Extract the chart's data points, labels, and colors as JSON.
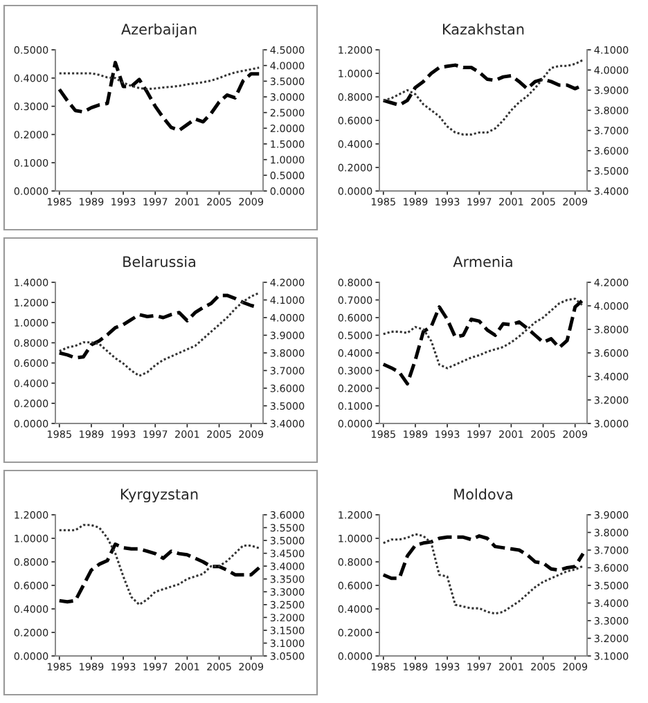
{
  "chart_data": [
    {
      "type": "line",
      "title": "Azerbaijan",
      "categories": [
        "1985",
        null,
        null,
        null,
        "1989",
        null,
        null,
        null,
        "1993",
        null,
        null,
        null,
        "1997",
        null,
        null,
        null,
        "2001",
        null,
        null,
        null,
        "2005",
        null,
        null,
        null,
        "2009",
        null
      ],
      "series": [
        {
          "color": "#000000",
          "line_style": "dashed",
          "values": [
            0.36,
            0.32,
            0.285,
            0.28,
            0.295,
            0.305,
            0.31,
            0.455,
            0.37,
            0.37,
            0.395,
            0.35,
            0.3,
            0.26,
            0.225,
            0.215,
            0.235,
            0.255,
            0.245,
            0.275,
            0.315,
            0.34,
            0.33,
            0.39,
            0.415,
            0.415
          ]
        },
        {
          "color": "#333333",
          "line_style": "dotted",
          "axis": "y2",
          "values": [
            3.75,
            3.75,
            3.75,
            3.75,
            3.75,
            3.7,
            3.62,
            3.6,
            3.45,
            3.35,
            3.28,
            3.25,
            3.27,
            3.3,
            3.32,
            3.35,
            3.4,
            3.43,
            3.47,
            3.52,
            3.6,
            3.7,
            3.78,
            3.83,
            3.88,
            3.93
          ]
        }
      ],
      "ylim": [
        0,
        0.5
      ],
      "yticks": [
        {
          "value": 0,
          "label": "0.0000"
        },
        {
          "value": 0.1,
          "label": "0.1000"
        },
        {
          "value": 0.2,
          "label": "0.2000"
        },
        {
          "value": 0.3,
          "label": "0.3000"
        },
        {
          "value": 0.4,
          "label": "0.4000"
        },
        {
          "value": 0.5,
          "label": "0.5000"
        }
      ],
      "y2lim": [
        0,
        4.5
      ],
      "y2ticks": [
        {
          "value": 0,
          "label": "0.0000"
        },
        {
          "value": 0.5,
          "label": "0.5000"
        },
        {
          "value": 1,
          "label": "1.0000"
        },
        {
          "value": 1.5,
          "label": "1.5000"
        },
        {
          "value": 2,
          "label": "2.0000"
        },
        {
          "value": 2.5,
          "label": "2.5000"
        },
        {
          "value": 3,
          "label": "3.0000"
        },
        {
          "value": 3.5,
          "label": "3.5000"
        },
        {
          "value": 4,
          "label": "4.0000"
        },
        {
          "value": 4.5,
          "label": "4.5000"
        }
      ],
      "grid": false,
      "legend": false
    },
    {
      "type": "line",
      "title": "Kazakhstan",
      "categories": [
        "1985",
        null,
        null,
        null,
        "1989",
        null,
        null,
        null,
        "1993",
        null,
        null,
        null,
        "1997",
        null,
        null,
        null,
        "2001",
        null,
        null,
        null,
        "2005",
        null,
        null,
        null,
        "2009",
        null
      ],
      "series": [
        {
          "color": "#000000",
          "line_style": "dashed",
          "values": [
            0.77,
            0.75,
            0.73,
            0.77,
            0.88,
            0.93,
            1.0,
            1.05,
            1.06,
            1.07,
            1.05,
            1.05,
            1.01,
            0.95,
            0.94,
            0.97,
            0.98,
            0.93,
            0.87,
            0.93,
            0.95,
            0.93,
            0.9,
            0.9,
            0.87,
            0.9
          ]
        },
        {
          "color": "#333333",
          "line_style": "dotted",
          "axis": "y2",
          "values": [
            3.85,
            3.86,
            3.88,
            3.9,
            3.88,
            3.83,
            3.8,
            3.77,
            3.72,
            3.69,
            3.68,
            3.68,
            3.69,
            3.69,
            3.71,
            3.75,
            3.8,
            3.84,
            3.87,
            3.91,
            3.96,
            4.01,
            4.02,
            4.02,
            4.03,
            4.05
          ]
        }
      ],
      "ylim": [
        0,
        1.2
      ],
      "yticks": [
        {
          "value": 0,
          "label": "0.0000"
        },
        {
          "value": 0.2,
          "label": "0.2000"
        },
        {
          "value": 0.4,
          "label": "0.4000"
        },
        {
          "value": 0.6,
          "label": "0.6000"
        },
        {
          "value": 0.8,
          "label": "0.8000"
        },
        {
          "value": 1.0,
          "label": "1.0000"
        },
        {
          "value": 1.2,
          "label": "1.2000"
        }
      ],
      "y2lim": [
        3.4,
        4.1
      ],
      "y2ticks": [
        {
          "value": 3.4,
          "label": "3.4000"
        },
        {
          "value": 3.5,
          "label": "3.5000"
        },
        {
          "value": 3.6,
          "label": "3.6000"
        },
        {
          "value": 3.7,
          "label": "3.7000"
        },
        {
          "value": 3.8,
          "label": "3.8000"
        },
        {
          "value": 3.9,
          "label": "3.9000"
        },
        {
          "value": 4.0,
          "label": "4.0000"
        },
        {
          "value": 4.1,
          "label": "4.1000"
        }
      ],
      "grid": false,
      "legend": false
    },
    {
      "type": "line",
      "title": "Belarussia",
      "categories": [
        "1985",
        null,
        null,
        null,
        "1989",
        null,
        null,
        null,
        "1993",
        null,
        null,
        null,
        "1997",
        null,
        null,
        null,
        "2001",
        null,
        null,
        null,
        "2005",
        null,
        null,
        null,
        "2009",
        null
      ],
      "series": [
        {
          "color": "#000000",
          "line_style": "dashed",
          "values": [
            0.7,
            0.68,
            0.65,
            0.66,
            0.78,
            0.82,
            0.88,
            0.95,
            0.98,
            1.03,
            1.08,
            1.06,
            1.07,
            1.05,
            1.08,
            1.1,
            1.02,
            1.1,
            1.15,
            1.19,
            1.27,
            1.27,
            1.24,
            1.2,
            1.17,
            1.15
          ]
        },
        {
          "color": "#333333",
          "line_style": "dotted",
          "axis": "y2",
          "values": [
            3.81,
            3.83,
            3.84,
            3.86,
            3.86,
            3.85,
            3.81,
            3.77,
            3.74,
            3.7,
            3.67,
            3.69,
            3.73,
            3.76,
            3.78,
            3.8,
            3.82,
            3.84,
            3.88,
            3.92,
            3.96,
            4.0,
            4.05,
            4.09,
            4.12,
            4.14
          ]
        }
      ],
      "ylim": [
        0,
        1.4
      ],
      "yticks": [
        {
          "value": 0,
          "label": "0.0000"
        },
        {
          "value": 0.2,
          "label": "0.2000"
        },
        {
          "value": 0.4,
          "label": "0.4000"
        },
        {
          "value": 0.6,
          "label": "0.6000"
        },
        {
          "value": 0.8,
          "label": "0.8000"
        },
        {
          "value": 1.0,
          "label": "1.0000"
        },
        {
          "value": 1.2,
          "label": "1.2000"
        },
        {
          "value": 1.4,
          "label": "1.4000"
        }
      ],
      "y2lim": [
        3.4,
        4.2
      ],
      "y2ticks": [
        {
          "value": 3.4,
          "label": "3.4000"
        },
        {
          "value": 3.5,
          "label": "3.5000"
        },
        {
          "value": 3.6,
          "label": "3.6000"
        },
        {
          "value": 3.7,
          "label": "3.7000"
        },
        {
          "value": 3.8,
          "label": "3.8000"
        },
        {
          "value": 3.9,
          "label": "3.9000"
        },
        {
          "value": 4.0,
          "label": "4.0000"
        },
        {
          "value": 4.1,
          "label": "4.1000"
        },
        {
          "value": 4.2,
          "label": "4.2000"
        }
      ],
      "grid": false,
      "legend": false
    },
    {
      "type": "line",
      "title": "Armenia",
      "categories": [
        "1985",
        null,
        null,
        null,
        "1989",
        null,
        null,
        null,
        "1993",
        null,
        null,
        null,
        "1997",
        null,
        null,
        null,
        "2001",
        null,
        null,
        null,
        "2005",
        null,
        null,
        null,
        "2009",
        null
      ],
      "series": [
        {
          "color": "#000000",
          "line_style": "dashed",
          "values": [
            0.335,
            0.315,
            0.29,
            0.225,
            0.36,
            0.52,
            0.55,
            0.66,
            0.59,
            0.49,
            0.5,
            0.59,
            0.58,
            0.53,
            0.5,
            0.565,
            0.56,
            0.575,
            0.54,
            0.5,
            0.46,
            0.48,
            0.43,
            0.47,
            0.66,
            0.7
          ]
        },
        {
          "color": "#333333",
          "line_style": "dotted",
          "axis": "y2",
          "values": [
            3.76,
            3.78,
            3.78,
            3.77,
            3.82,
            3.8,
            3.7,
            3.5,
            3.47,
            3.5,
            3.53,
            3.56,
            3.58,
            3.61,
            3.63,
            3.65,
            3.69,
            3.74,
            3.8,
            3.86,
            3.9,
            3.96,
            4.02,
            4.05,
            4.06,
            4.0
          ]
        }
      ],
      "ylim": [
        0,
        0.8
      ],
      "yticks": [
        {
          "value": 0,
          "label": "0.0000"
        },
        {
          "value": 0.1,
          "label": "0.1000"
        },
        {
          "value": 0.2,
          "label": "0.2000"
        },
        {
          "value": 0.3,
          "label": "0.3000"
        },
        {
          "value": 0.4,
          "label": "0.4000"
        },
        {
          "value": 0.5,
          "label": "0.5000"
        },
        {
          "value": 0.6,
          "label": "0.6000"
        },
        {
          "value": 0.7,
          "label": "0.7000"
        },
        {
          "value": 0.8,
          "label": "0.8000"
        }
      ],
      "y2lim": [
        3.0,
        4.2
      ],
      "y2ticks": [
        {
          "value": 3.0,
          "label": "3.0000"
        },
        {
          "value": 3.2,
          "label": "3.2000"
        },
        {
          "value": 3.4,
          "label": "3.4000"
        },
        {
          "value": 3.6,
          "label": "3.6000"
        },
        {
          "value": 3.8,
          "label": "3.8000"
        },
        {
          "value": 4.0,
          "label": "4.0000"
        },
        {
          "value": 4.2,
          "label": "4.2000"
        }
      ],
      "grid": false,
      "legend": false
    },
    {
      "type": "line",
      "title": "Kyrgyzstan",
      "categories": [
        "1985",
        null,
        null,
        null,
        "1989",
        null,
        null,
        null,
        "1993",
        null,
        null,
        null,
        "1997",
        null,
        null,
        null,
        "2001",
        null,
        null,
        null,
        "2005",
        null,
        null,
        null,
        "2009",
        null
      ],
      "series": [
        {
          "color": "#000000",
          "line_style": "dashed",
          "values": [
            0.47,
            0.46,
            0.47,
            0.6,
            0.73,
            0.78,
            0.81,
            0.95,
            0.92,
            0.91,
            0.91,
            0.89,
            0.87,
            0.83,
            0.89,
            0.87,
            0.86,
            0.83,
            0.8,
            0.76,
            0.76,
            0.73,
            0.69,
            0.69,
            0.69,
            0.75
          ]
        },
        {
          "color": "#333333",
          "line_style": "dotted",
          "axis": "y2",
          "values": [
            3.54,
            3.54,
            3.54,
            3.56,
            3.56,
            3.55,
            3.51,
            3.45,
            3.36,
            3.28,
            3.25,
            3.27,
            3.3,
            3.31,
            3.32,
            3.33,
            3.35,
            3.36,
            3.37,
            3.4,
            3.4,
            3.42,
            3.45,
            3.48,
            3.48,
            3.47
          ]
        }
      ],
      "ylim": [
        0,
        1.2
      ],
      "yticks": [
        {
          "value": 0,
          "label": "0.0000"
        },
        {
          "value": 0.2,
          "label": "0.2000"
        },
        {
          "value": 0.4,
          "label": "0.4000"
        },
        {
          "value": 0.6,
          "label": "0.6000"
        },
        {
          "value": 0.8,
          "label": "0.8000"
        },
        {
          "value": 1.0,
          "label": "1.0000"
        },
        {
          "value": 1.2,
          "label": "1.2000"
        }
      ],
      "y2lim": [
        3.05,
        3.6
      ],
      "y2ticks": [
        {
          "value": 3.05,
          "label": "3.0500"
        },
        {
          "value": 3.1,
          "label": "3.1000"
        },
        {
          "value": 3.15,
          "label": "3.1500"
        },
        {
          "value": 3.2,
          "label": "3.2000"
        },
        {
          "value": 3.25,
          "label": "3.2500"
        },
        {
          "value": 3.3,
          "label": "3.3000"
        },
        {
          "value": 3.35,
          "label": "3.3500"
        },
        {
          "value": 3.4,
          "label": "3.4000"
        },
        {
          "value": 3.45,
          "label": "3.4500"
        },
        {
          "value": 3.5,
          "label": "3.5000"
        },
        {
          "value": 3.55,
          "label": "3.5500"
        },
        {
          "value": 3.6,
          "label": "3.6000"
        }
      ],
      "grid": false,
      "legend": false
    },
    {
      "type": "line",
      "title": "Moldova",
      "categories": [
        "1985",
        null,
        null,
        null,
        "1989",
        null,
        null,
        null,
        "1993",
        null,
        null,
        null,
        "1997",
        null,
        null,
        null,
        "2001",
        null,
        null,
        null,
        "2005",
        null,
        null,
        null,
        "2009",
        null
      ],
      "series": [
        {
          "color": "#000000",
          "line_style": "dashed",
          "values": [
            0.69,
            0.66,
            0.66,
            0.85,
            0.94,
            0.96,
            0.97,
            1.0,
            1.01,
            1.01,
            1.01,
            0.99,
            1.02,
            1.0,
            0.93,
            0.92,
            0.91,
            0.9,
            0.86,
            0.8,
            0.79,
            0.74,
            0.73,
            0.75,
            0.76,
            0.87
          ]
        },
        {
          "color": "#333333",
          "line_style": "dotted",
          "axis": "y2",
          "values": [
            3.74,
            3.76,
            3.76,
            3.77,
            3.79,
            3.78,
            3.74,
            3.56,
            3.55,
            3.39,
            3.38,
            3.37,
            3.37,
            3.35,
            3.34,
            3.35,
            3.38,
            3.41,
            3.45,
            3.49,
            3.52,
            3.54,
            3.56,
            3.58,
            3.59,
            3.61
          ]
        }
      ],
      "ylim": [
        0,
        1.2
      ],
      "yticks": [
        {
          "value": 0,
          "label": "0.0000"
        },
        {
          "value": 0.2,
          "label": "0.2000"
        },
        {
          "value": 0.4,
          "label": "0.4000"
        },
        {
          "value": 0.6,
          "label": "0.6000"
        },
        {
          "value": 0.8,
          "label": "0.8000"
        },
        {
          "value": 1.0,
          "label": "1.0000"
        },
        {
          "value": 1.2,
          "label": "1.2000"
        }
      ],
      "y2lim": [
        3.1,
        3.9
      ],
      "y2ticks": [
        {
          "value": 3.1,
          "label": "3.1000"
        },
        {
          "value": 3.2,
          "label": "3.2000"
        },
        {
          "value": 3.3,
          "label": "3.3000"
        },
        {
          "value": 3.4,
          "label": "3.4000"
        },
        {
          "value": 3.5,
          "label": "3.5000"
        },
        {
          "value": 3.6,
          "label": "3.6000"
        },
        {
          "value": 3.7,
          "label": "3.7000"
        },
        {
          "value": 3.8,
          "label": "3.8000"
        },
        {
          "value": 3.9,
          "label": "3.9000"
        }
      ],
      "grid": false,
      "legend": false
    }
  ]
}
